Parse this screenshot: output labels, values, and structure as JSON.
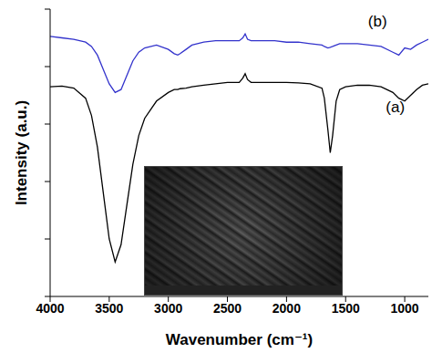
{
  "chart_data": {
    "type": "line",
    "xlabel": "Wavenumber (cm⁻¹)",
    "ylabel": "Intensity (a.u.)",
    "x": [
      4000,
      3900,
      3800,
      3700,
      3650,
      3600,
      3550,
      3500,
      3450,
      3400,
      3350,
      3300,
      3250,
      3200,
      3100,
      3000,
      2950,
      2920,
      2900,
      2850,
      2800,
      2700,
      2600,
      2500,
      2400,
      2370,
      2350,
      2330,
      2300,
      2200,
      2100,
      2000,
      1900,
      1800,
      1700,
      1680,
      1650,
      1630,
      1610,
      1580,
      1550,
      1500,
      1400,
      1300,
      1200,
      1100,
      1050,
      1000,
      950,
      900,
      850,
      800
    ],
    "series": [
      {
        "name": "(a)",
        "color": "#000000",
        "values": [
          73,
          73.2,
          72.5,
          69,
          63,
          52,
          36,
          20,
          12,
          18,
          32,
          46,
          56,
          62,
          68,
          71,
          72,
          72,
          72.3,
          72.5,
          73,
          73.5,
          74,
          74.5,
          74.5,
          76,
          77.5,
          75.5,
          74.5,
          74.5,
          74.5,
          74.5,
          74.3,
          74,
          72.5,
          69,
          58,
          50,
          56,
          68,
          72,
          73,
          73.5,
          73.5,
          73,
          71,
          69,
          68,
          70,
          72,
          73.5,
          74
        ]
      },
      {
        "name": "(b)",
        "color": "#3333cc",
        "values": [
          90.5,
          90,
          89.5,
          88.5,
          87,
          84,
          79,
          74,
          71,
          72,
          77,
          82,
          85,
          86.5,
          87.5,
          86,
          84.5,
          84,
          84.5,
          86,
          87.5,
          88.5,
          89,
          89,
          89,
          90,
          91.4,
          89.5,
          89,
          89,
          89,
          88.5,
          88.5,
          88,
          87.5,
          87,
          86.5,
          86.7,
          87,
          87.5,
          88,
          88,
          88,
          87.5,
          87,
          85,
          84,
          86.5,
          86,
          87.5,
          88.5,
          89.5
        ]
      }
    ],
    "xlim": [
      4000,
      800
    ],
    "xticks": [
      4000,
      3500,
      3000,
      2500,
      2000,
      1500,
      1000
    ],
    "ylim": [
      0,
      100
    ],
    "yticks": [
      0,
      20,
      40,
      60,
      80,
      100
    ],
    "tick_labels": "x",
    "annotations": [
      {
        "text": "(a)",
        "x": 1080,
        "y": 66
      },
      {
        "text": "(b)",
        "x": 1230,
        "y": 96
      }
    ]
  }
}
